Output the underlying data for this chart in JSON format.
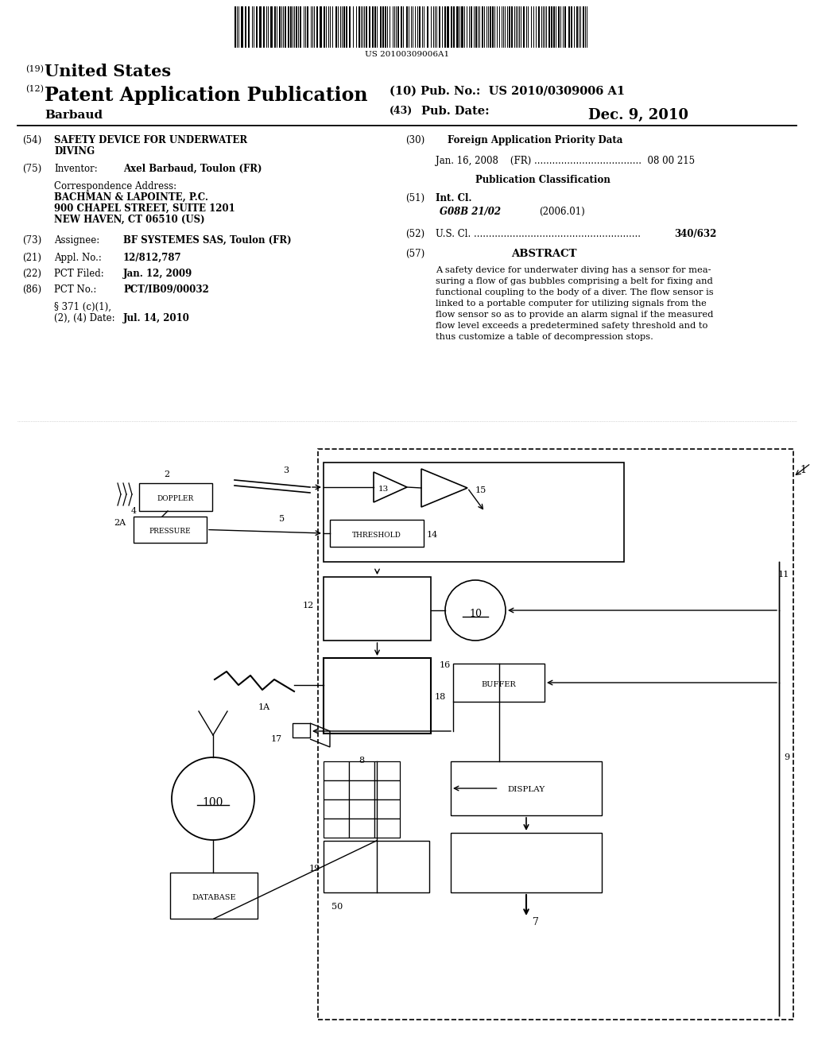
{
  "bg_color": "#ffffff",
  "barcode_text": "US 20100309006A1",
  "header_19_label": "(19)",
  "header_19_text": "United States",
  "header_12_label": "(12)",
  "header_12_text": "Patent Application Publication",
  "header_10_text": "(10) Pub. No.:  US 2010/0309006 A1",
  "header_author": "Barbaud",
  "header_43_label": "(43)",
  "header_43_text": "Pub. Date:",
  "header_date": "Dec. 9, 2010",
  "field54_label": "(54)",
  "field54_title1": "SAFETY DEVICE FOR UNDERWATER",
  "field54_title2": "DIVING",
  "field75_label": "(75)",
  "field75_text": "Inventor:",
  "field75_val": "Axel Barbaud, Toulon (FR)",
  "corr_label": "Correspondence Address:",
  "corr_line1": "BACHMAN & LAPOINTE, P.C.",
  "corr_line2": "900 CHAPEL STREET, SUITE 1201",
  "corr_line3": "NEW HAVEN, CT 06510 (US)",
  "field73_label": "(73)",
  "field73_text": "Assignee:",
  "field73_val": "BF SYSTEMES SAS, Toulon (FR)",
  "field21_label": "(21)",
  "field21_text": "Appl. No.:",
  "field21_val": "12/812,787",
  "field22_label": "(22)",
  "field22_text": "PCT Filed:",
  "field22_val": "Jan. 12, 2009",
  "field86_label": "(86)",
  "field86_text": "PCT No.:",
  "field86_val": "PCT/IB09/00032",
  "field371_text1": "§ 371 (c)(1),",
  "field371_text2": "(2), (4) Date:",
  "field371_val": "Jul. 14, 2010",
  "field30_label": "(30)",
  "field30_title": "Foreign Application Priority Data",
  "field30_entry": "Jan. 16, 2008    (FR) ....................................  08 00 215",
  "pub_class_title": "Publication Classification",
  "field51_label": "(51)",
  "field51_title": "Int. Cl.",
  "field51_class": "G08B 21/02",
  "field51_year": "(2006.01)",
  "field52_label": "(52)",
  "field52_dots": "U.S. Cl. ........................................................",
  "field52_val": "340/632",
  "field57_label": "(57)",
  "field57_title": "ABSTRACT",
  "abstract_lines": [
    "A safety device for underwater diving has a sensor for mea-",
    "suring a flow of gas bubbles comprising a belt for fixing and",
    "functional coupling to the body of a diver. The flow sensor is",
    "linked to a portable computer for utilizing signals from the",
    "flow sensor so as to provide an alarm signal if the measured",
    "flow level exceeds a predetermined safety threshold and to",
    "thus customize a table of decompression stops."
  ]
}
